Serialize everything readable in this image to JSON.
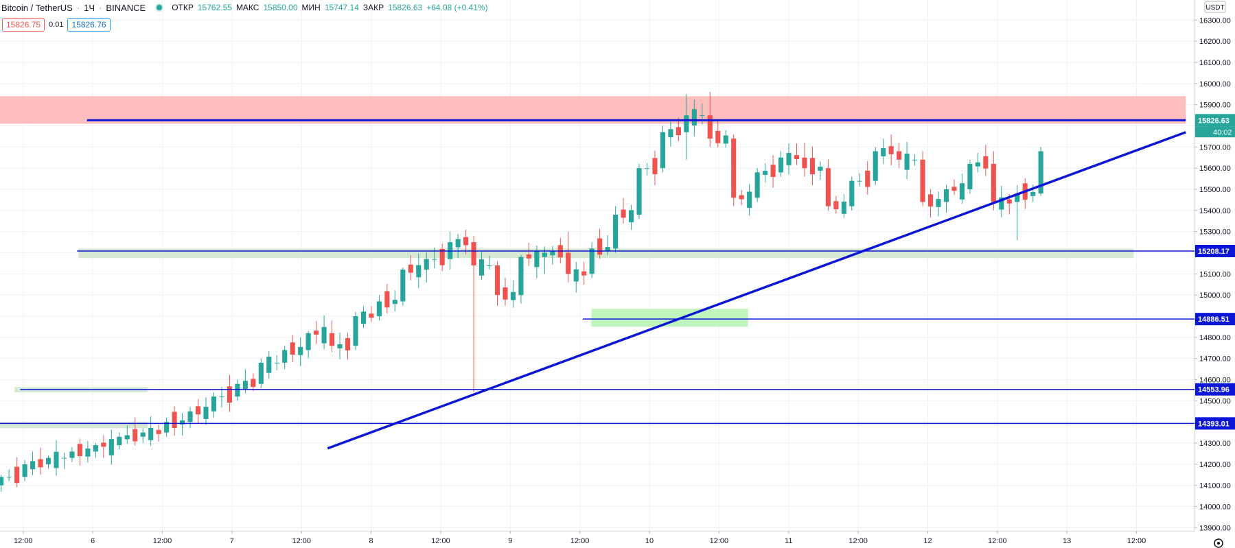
{
  "header": {
    "symbol": "Bitcoin / TetherUS",
    "interval": "1Ч",
    "exchange": "BINANCE",
    "open_label": "ОТКР",
    "open_value": "15762.55",
    "high_label": "МАКС",
    "high_value": "15850.00",
    "low_label": "МИН",
    "low_value": "15747.14",
    "close_label": "ЗАКР",
    "close_value": "15826.63",
    "change": "+64.08 (+0.41%)"
  },
  "quotes": {
    "sell": "15826.75",
    "spread": "0.01",
    "buy": "15826.76"
  },
  "colors": {
    "up": "#26a69a",
    "down": "#ef5350",
    "line": "#0b16d6",
    "resistance": "#ffb3b3",
    "support_dark": "#d7e8d3",
    "support_light": "#b9f5b6"
  },
  "chart_data": {
    "type": "candlestick",
    "currency_label": "USDT",
    "y_ticks": [
      "13900.00",
      "14000.00",
      "14100.00",
      "14200.00",
      "14300.00",
      "14400.00",
      "14500.00",
      "14600.00",
      "14700.00",
      "14800.00",
      "14900.00",
      "15000.00",
      "15100.00",
      "15200.00",
      "15300.00",
      "15400.00",
      "15500.00",
      "15600.00",
      "15700.00",
      "15800.00",
      "15900.00",
      "16000.00",
      "16100.00",
      "16200.00",
      "16300.00"
    ],
    "ylim": [
      13885,
      16395
    ],
    "x_ticks": [
      {
        "label": "12:00",
        "t": 12
      },
      {
        "label": "6",
        "t": 24
      },
      {
        "label": "12:00",
        "t": 36
      },
      {
        "label": "7",
        "t": 48
      },
      {
        "label": "12:00",
        "t": 60
      },
      {
        "label": "8",
        "t": 72
      },
      {
        "label": "12:00",
        "t": 84
      },
      {
        "label": "9",
        "t": 96
      },
      {
        "label": "12:00",
        "t": 108
      },
      {
        "label": "10",
        "t": 120
      },
      {
        "label": "12:00",
        "t": 132
      },
      {
        "label": "11",
        "t": 144
      },
      {
        "label": "12:00",
        "t": 156
      },
      {
        "label": "12",
        "t": 168
      },
      {
        "label": "12:00",
        "t": 180
      },
      {
        "label": "13",
        "t": 192
      },
      {
        "label": "12:00",
        "t": 204
      }
    ],
    "xlim": [
      8,
      214
    ],
    "candles": [
      [
        15,
        "",
        14100
      ],
      [
        15,
        "",
        14150
      ],
      [
        14,
        "",
        14200
      ],
      [
        15,
        "",
        14230
      ],
      [
        15,
        "",
        14260
      ],
      [
        15,
        "",
        14290
      ],
      [
        14,
        "",
        14330
      ],
      [
        15,
        "",
        14360
      ],
      [
        14,
        "",
        14400
      ],
      [
        15,
        "",
        14450
      ],
      [
        15,
        "",
        14500
      ],
      [
        15,
        "",
        14560
      ],
      [
        15,
        "",
        14640
      ],
      [
        15,
        "",
        14720
      ],
      [
        14,
        "",
        14820
      ],
      [
        15,
        "",
        14900
      ],
      [
        14,
        "",
        14860
      ],
      [
        15,
        "",
        14980
      ],
      [
        15,
        "",
        15100
      ],
      [
        14,
        "",
        15160
      ],
      [
        15,
        "",
        15250
      ],
      [
        14,
        "",
        15200
      ],
      [
        15,
        "",
        15050
      ],
      [
        15,
        "",
        15100
      ],
      [
        15,
        "",
        15200
      ],
      [
        15,
        "",
        15370
      ],
      [
        15,
        "",
        15560
      ],
      [
        15,
        "",
        15780
      ],
      [
        14,
        "",
        15720
      ],
      [
        14,
        "",
        15760
      ],
      [
        14,
        "",
        15620
      ],
      [
        14,
        "",
        15480
      ],
      [
        14,
        "",
        15500
      ],
      [
        15,
        "",
        15580
      ],
      [
        15,
        "",
        15640
      ],
      [
        14,
        "",
        15580
      ],
      [
        14,
        "",
        15400
      ],
      [
        15,
        "",
        15500
      ],
      [
        15,
        "",
        15620
      ],
      [
        14,
        "",
        15450
      ],
      [
        15,
        "",
        15700
      ],
      [
        14,
        "",
        15550
      ],
      [
        14,
        "",
        15480
      ],
      [
        15,
        "",
        15600
      ],
      [
        14,
        "",
        15420
      ]
    ],
    "ohlc": [
      {
        "o": 14100,
        "h": 14150,
        "l": 14070,
        "c": 14140
      },
      {
        "o": 14140,
        "h": 14220,
        "l": 14120,
        "c": 14200
      },
      {
        "o": 14200,
        "h": 14240,
        "l": 14180,
        "c": 14230
      },
      {
        "o": 14230,
        "h": 14280,
        "l": 14210,
        "c": 14260
      },
      {
        "o": 14260,
        "h": 14300,
        "l": 14230,
        "c": 14290
      },
      {
        "o": 14290,
        "h": 14350,
        "l": 14270,
        "c": 14330
      },
      {
        "o": 14330,
        "h": 14370,
        "l": 14300,
        "c": 14350
      },
      {
        "o": 14350,
        "h": 14420,
        "l": 14330,
        "c": 14400
      },
      {
        "o": 14400,
        "h": 14470,
        "l": 14370,
        "c": 14450
      },
      {
        "o": 14450,
        "h": 14540,
        "l": 14420,
        "c": 14520
      },
      {
        "o": 14520,
        "h": 14600,
        "l": 14500,
        "c": 14580
      },
      {
        "o": 14580,
        "h": 14700,
        "l": 14560,
        "c": 14680
      },
      {
        "o": 14680,
        "h": 14760,
        "l": 14650,
        "c": 14740
      },
      {
        "o": 14740,
        "h": 14830,
        "l": 14700,
        "c": 14820
      },
      {
        "o": 14820,
        "h": 14880,
        "l": 14730,
        "c": 14760
      },
      {
        "o": 14760,
        "h": 14920,
        "l": 14740,
        "c": 14900
      },
      {
        "o": 14900,
        "h": 15000,
        "l": 14880,
        "c": 14970
      },
      {
        "o": 14970,
        "h": 15130,
        "l": 14950,
        "c": 15120
      },
      {
        "o": 15120,
        "h": 15200,
        "l": 15060,
        "c": 15170
      },
      {
        "o": 15170,
        "h": 15300,
        "l": 15120,
        "c": 15250
      },
      {
        "o": 15250,
        "h": 15280,
        "l": 14540,
        "c": 15140
      },
      {
        "o": 15140,
        "h": 15160,
        "l": 14950,
        "c": 15000
      },
      {
        "o": 15000,
        "h": 15190,
        "l": 14960,
        "c": 15180
      },
      {
        "o": 15180,
        "h": 15230,
        "l": 15100,
        "c": 15200
      },
      {
        "o": 15200,
        "h": 15300,
        "l": 15060,
        "c": 15100
      },
      {
        "o": 15100,
        "h": 15250,
        "l": 15080,
        "c": 15220
      },
      {
        "o": 15220,
        "h": 15420,
        "l": 15200,
        "c": 15380
      },
      {
        "o": 15380,
        "h": 15620,
        "l": 15360,
        "c": 15600
      },
      {
        "o": 15600,
        "h": 15800,
        "l": 15580,
        "c": 15770
      },
      {
        "o": 15770,
        "h": 15950,
        "l": 15640,
        "c": 15850
      },
      {
        "o": 15850,
        "h": 15960,
        "l": 15700,
        "c": 15740
      },
      {
        "o": 15740,
        "h": 15760,
        "l": 15420,
        "c": 15460
      },
      {
        "o": 15460,
        "h": 15600,
        "l": 15440,
        "c": 15580
      },
      {
        "o": 15580,
        "h": 15680,
        "l": 15560,
        "c": 15650
      },
      {
        "o": 15650,
        "h": 15720,
        "l": 15560,
        "c": 15600
      },
      {
        "o": 15600,
        "h": 15640,
        "l": 15400,
        "c": 15420
      },
      {
        "o": 15420,
        "h": 15560,
        "l": 15400,
        "c": 15540
      },
      {
        "o": 15540,
        "h": 15700,
        "l": 15520,
        "c": 15680
      },
      {
        "o": 15680,
        "h": 15720,
        "l": 15600,
        "c": 15640
      },
      {
        "o": 15640,
        "h": 15680,
        "l": 15420,
        "c": 15440
      },
      {
        "o": 15440,
        "h": 15520,
        "l": 15390,
        "c": 15500
      },
      {
        "o": 15500,
        "h": 15640,
        "l": 15480,
        "c": 15620
      },
      {
        "o": 15620,
        "h": 15680,
        "l": 15400,
        "c": 15440
      },
      {
        "o": 15440,
        "h": 15520,
        "l": 15260,
        "c": 15480
      },
      {
        "o": 15480,
        "h": 15700,
        "l": 15470,
        "c": 15680
      }
    ],
    "levels": [
      {
        "price": 15826.63,
        "label": "15826.63",
        "dark": false
      },
      {
        "price": 15208.17,
        "label": "15208.17",
        "dark": false
      },
      {
        "price": 14886.51,
        "label": "14886.51",
        "dark": false
      },
      {
        "price": 14553.96,
        "label": "14553.96",
        "dark": false
      },
      {
        "price": 14393.01,
        "label": "14393.01",
        "dark": false
      }
    ],
    "countdown": "40:02"
  }
}
